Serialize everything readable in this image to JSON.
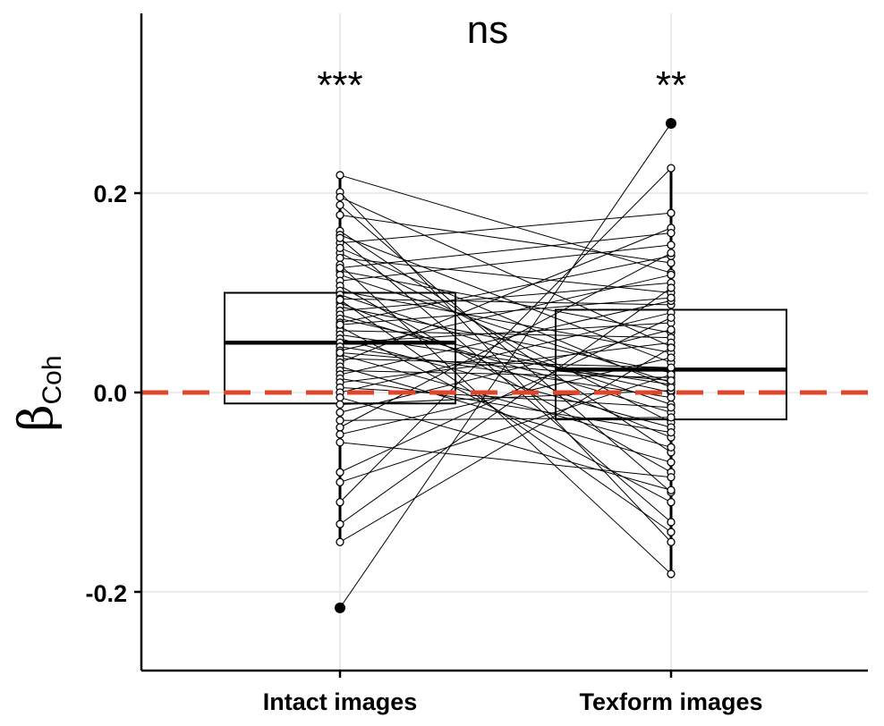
{
  "chart_data": {
    "type": "boxplot-paired",
    "title": "",
    "xlabel": "",
    "ylabel": "β",
    "ylabel_subscript": "Coh",
    "categories": [
      "Intact images",
      "Texform images"
    ],
    "ylim": [
      -0.28,
      0.375
    ],
    "yticks": [
      -0.2,
      0.0,
      0.2
    ],
    "ytick_labels": [
      "-0.2",
      "0.0",
      "0.2"
    ],
    "grid": true,
    "reference_line": {
      "y": 0.0,
      "style": "dashed",
      "color": "#e0442b"
    },
    "boxes": [
      {
        "name": "Intact images",
        "q1": -0.011,
        "median": 0.05,
        "q3": 0.1,
        "whisker_low": -0.15,
        "whisker_high": 0.218
      },
      {
        "name": "Texform images",
        "q1": -0.027,
        "median": 0.023,
        "q3": 0.083,
        "whisker_low": -0.182,
        "whisker_high": 0.225
      }
    ],
    "outliers": [
      {
        "category": "Intact images",
        "value": -0.216
      },
      {
        "category": "Texform images",
        "value": 0.27
      }
    ],
    "significance": {
      "between": "ns",
      "per_category": [
        "***",
        "**"
      ]
    },
    "pairs": [
      [
        0.218,
        0.12
      ],
      [
        0.201,
        -0.15
      ],
      [
        0.196,
        0.046
      ],
      [
        0.188,
        -0.1
      ],
      [
        0.178,
        0.13
      ],
      [
        0.162,
        -0.06
      ],
      [
        0.158,
        0.03
      ],
      [
        0.15,
        0.18
      ],
      [
        0.14,
        -0.03
      ],
      [
        0.135,
        0.1
      ],
      [
        0.128,
        -0.182
      ],
      [
        0.122,
        0.06
      ],
      [
        0.118,
        0.01
      ],
      [
        0.112,
        0.148
      ],
      [
        0.107,
        -0.08
      ],
      [
        0.102,
        0.04
      ],
      [
        0.098,
        -0.012
      ],
      [
        0.094,
        0.088
      ],
      [
        0.09,
        -0.045
      ],
      [
        0.086,
        0.02
      ],
      [
        0.082,
        0.11
      ],
      [
        0.078,
        -0.02
      ],
      [
        0.074,
        0.0
      ],
      [
        0.07,
        0.137
      ],
      [
        0.066,
        -0.11
      ],
      [
        0.062,
        0.055
      ],
      [
        0.058,
        0.008
      ],
      [
        0.054,
        -0.035
      ],
      [
        0.05,
        0.07
      ],
      [
        0.046,
        -0.005
      ],
      [
        0.042,
        0.118
      ],
      [
        0.038,
        -0.055
      ],
      [
        0.034,
        0.025
      ],
      [
        0.03,
        0.165
      ],
      [
        0.026,
        -0.07
      ],
      [
        0.022,
        0.015
      ],
      [
        0.018,
        0.092
      ],
      [
        0.014,
        -0.04
      ],
      [
        0.01,
        0.05
      ],
      [
        0.005,
        -0.015
      ],
      [
        0.0,
        0.08
      ],
      [
        -0.005,
        -0.098
      ],
      [
        -0.012,
        0.002
      ],
      [
        -0.02,
        0.063
      ],
      [
        -0.028,
        -0.025
      ],
      [
        -0.035,
        0.14
      ],
      [
        -0.042,
        0.035
      ],
      [
        -0.05,
        -0.085
      ],
      [
        -0.08,
        0.075
      ],
      [
        -0.09,
        0.018
      ],
      [
        -0.11,
        0.225
      ],
      [
        -0.132,
        0.105
      ],
      [
        -0.15,
        0.045
      ],
      [
        -0.216,
        0.27
      ],
      [
        0.155,
        -0.13
      ],
      [
        0.145,
        0.005
      ],
      [
        0.125,
        0.16
      ],
      [
        0.093,
        -0.14
      ],
      [
        0.068,
        0.095
      ],
      [
        0.04,
        0.012
      ]
    ]
  }
}
